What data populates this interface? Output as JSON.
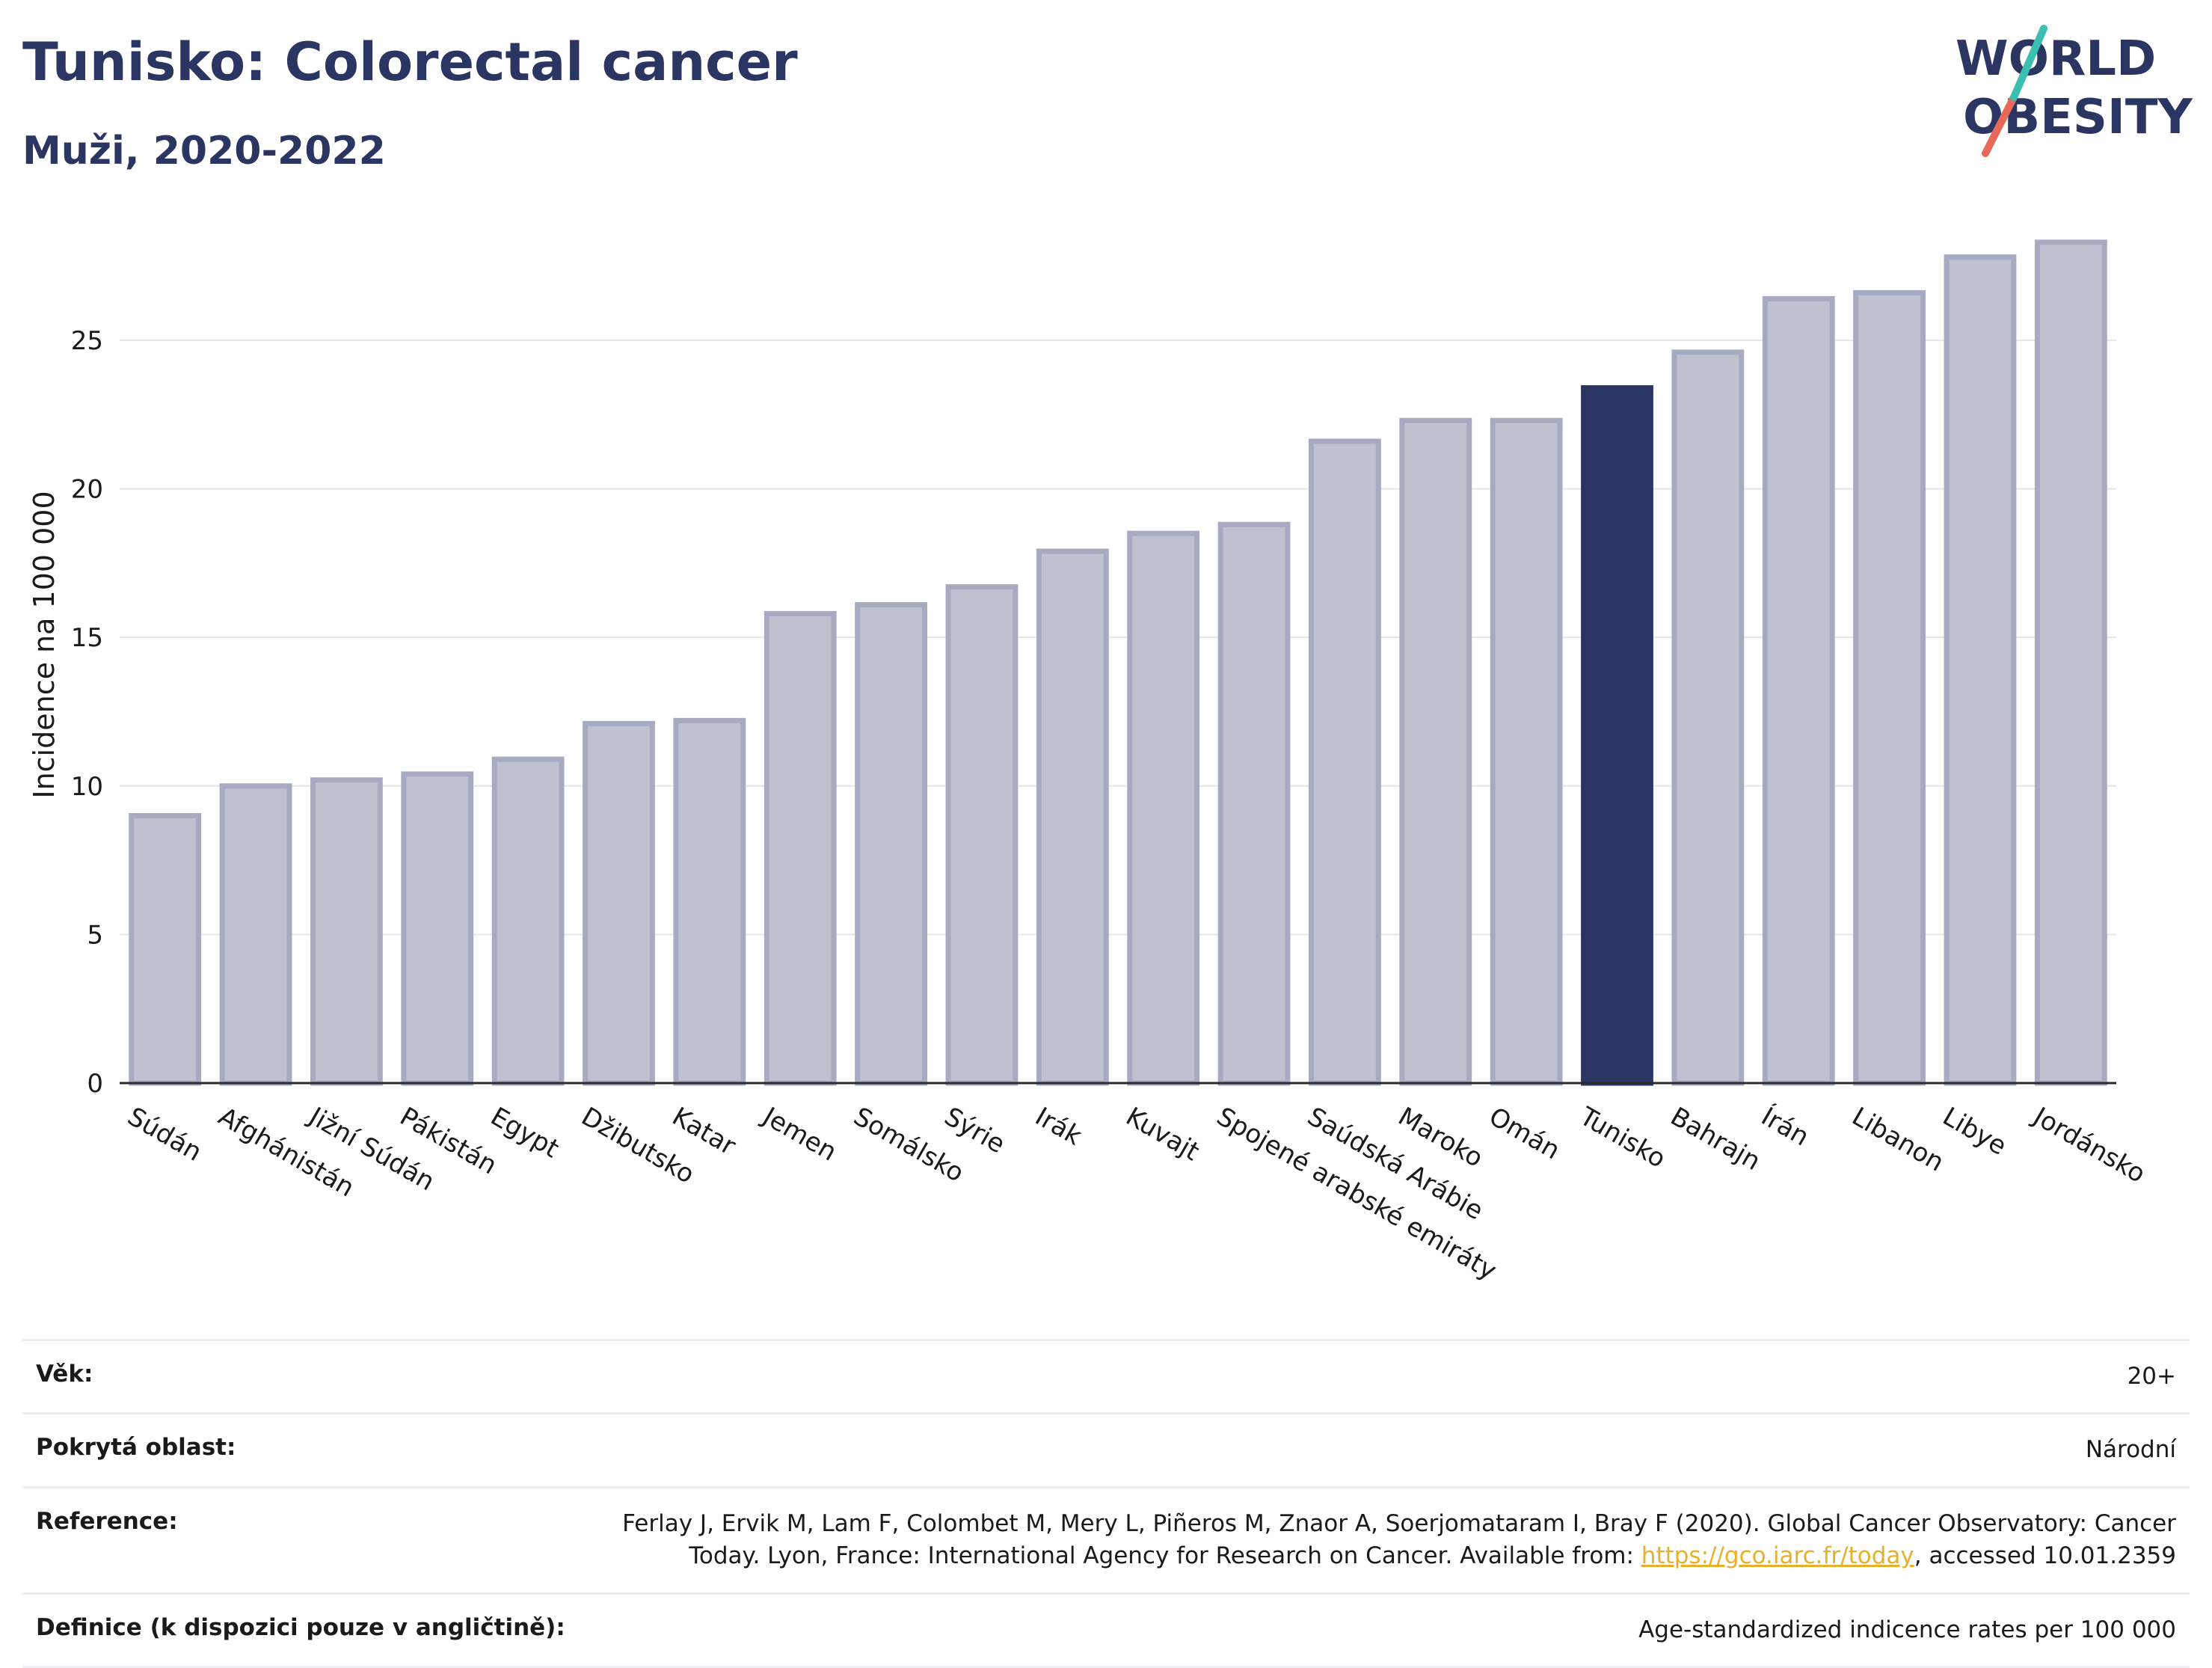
{
  "title": "Tunisko: Colorectal cancer",
  "subtitle": "Muži, 2020-2022",
  "logo": {
    "line1": "WORLD",
    "line2": "OBESITY",
    "slash_colors": [
      "#3bbfb0",
      "#e8685a"
    ]
  },
  "colors": {
    "highlight": "#2b3561",
    "bar_fill": "#bec1cf",
    "bar_stroke": "#a7abc2"
  },
  "chart_data": {
    "type": "bar",
    "ylabel": "Incidence na 100 000",
    "xlabel": "",
    "ylim": [
      0,
      28.9
    ],
    "yticks": [
      0,
      5,
      10,
      15,
      20,
      25
    ],
    "grid": true,
    "highlight": "Tunisko",
    "categories": [
      "Súdán",
      "Afghánistán",
      "Jižní Súdán",
      "Pákistán",
      "Egypt",
      "Džibutsko",
      "Katar",
      "Jemen",
      "Somálsko",
      "Sýrie",
      "Irák",
      "Kuvajt",
      "Spojené arabské emiráty",
      "Saúdská Arábie",
      "Maroko",
      "Omán",
      "Tunisko",
      "Bahrajn",
      "Írán",
      "Libanon",
      "Libye",
      "Jordánsko"
    ],
    "values": [
      9.0,
      10.0,
      10.2,
      10.4,
      10.9,
      12.1,
      12.2,
      15.8,
      16.1,
      16.7,
      17.9,
      18.5,
      18.8,
      21.6,
      22.3,
      22.3,
      23.4,
      24.6,
      26.4,
      26.6,
      27.8,
      28.3
    ]
  },
  "meta": [
    {
      "key": "Věk:",
      "value": "20+"
    },
    {
      "key": "Pokrytá oblast:",
      "value": "Národní"
    },
    {
      "key": "Reference:",
      "value_pre": "Ferlay J, Ervik M, Lam F, Colombet M, Mery L, Piñeros M, Znaor A, Soerjomataram I, Bray F (2020). Global Cancer Observatory: Cancer Today. Lyon, France: International Agency for Research on Cancer. Available from: ",
      "link": "https://gco.iarc.fr/today",
      "value_post": ", accessed 10.01.2359"
    },
    {
      "key": "Definice (k dispozici pouze v angličtině):",
      "value": "Age-standardized indicence rates per 100 000"
    }
  ]
}
